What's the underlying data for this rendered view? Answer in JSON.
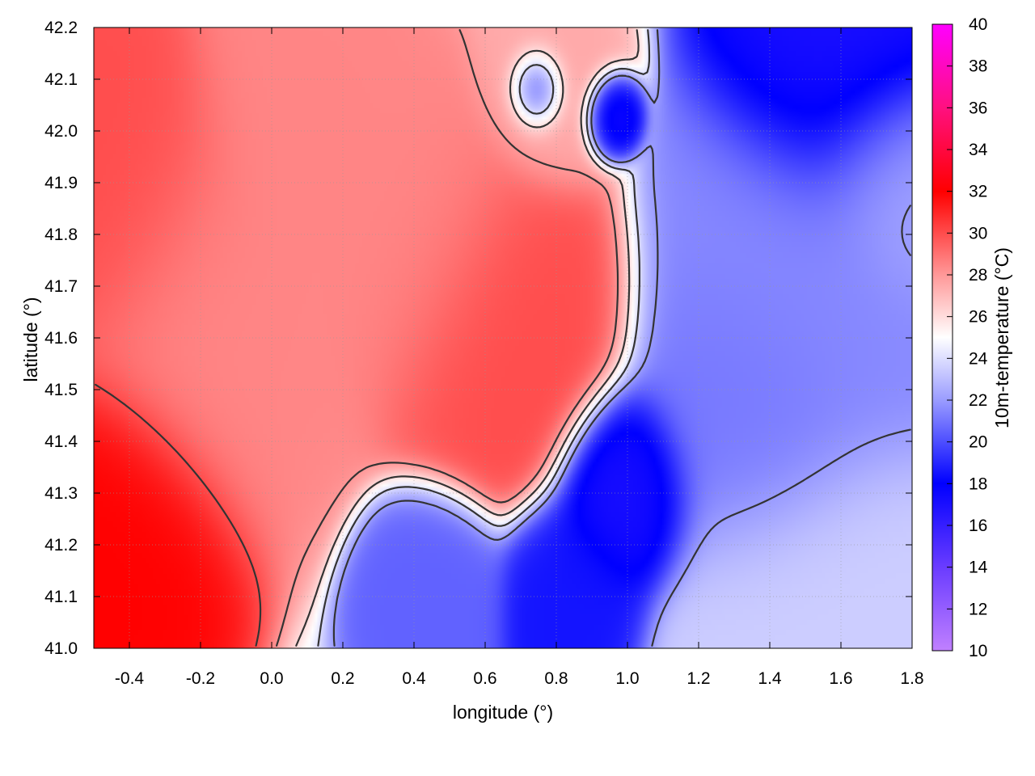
{
  "chart_data": {
    "type": "heatmap",
    "title": "",
    "xlabel": "longitude (°)",
    "ylabel": "latitude (°)",
    "colorbar_label": "10m-temperature (°C)",
    "xlim": [
      -0.5,
      1.8
    ],
    "ylim": [
      41.0,
      42.2
    ],
    "clim": [
      10,
      40
    ],
    "x_ticks": [
      "-0.4",
      "-0.2",
      "0.0",
      "0.2",
      "0.4",
      "0.6",
      "0.8",
      "1.0",
      "1.2",
      "1.4",
      "1.6",
      "1.8"
    ],
    "y_ticks": [
      "41.0",
      "41.1",
      "41.2",
      "41.3",
      "41.4",
      "41.5",
      "41.6",
      "41.7",
      "41.8",
      "41.9",
      "42.0",
      "42.1",
      "42.2"
    ],
    "colorbar_ticks": [
      "10",
      "12",
      "14",
      "16",
      "18",
      "20",
      "22",
      "24",
      "26",
      "28",
      "30",
      "32",
      "34",
      "36",
      "38",
      "40"
    ],
    "grid": true,
    "colormap": [
      {
        "t": 10,
        "color": "#c080ff"
      },
      {
        "t": 14,
        "color": "#6a3cff"
      },
      {
        "t": 18,
        "color": "#0000ff"
      },
      {
        "t": 22,
        "color": "#9a9cff"
      },
      {
        "t": 25,
        "color": "#ffffff"
      },
      {
        "t": 28,
        "color": "#ff9898"
      },
      {
        "t": 32,
        "color": "#ff0000"
      },
      {
        "t": 36,
        "color": "#ff1080"
      },
      {
        "t": 40,
        "color": "#ff00ff"
      }
    ],
    "temperature_centers": [
      {
        "lon": -0.45,
        "lat": 41.2,
        "t": 32,
        "r": 0.2
      },
      {
        "lon": -0.45,
        "lat": 41.9,
        "t": 30,
        "r": 0.22
      },
      {
        "lon": -0.15,
        "lat": 41.65,
        "t": 28.5,
        "r": 0.25
      },
      {
        "lon": 0.65,
        "lat": 41.62,
        "t": 30,
        "r": 0.2
      },
      {
        "lon": 0.4,
        "lat": 41.8,
        "t": 28.5,
        "r": 0.2
      },
      {
        "lon": 0.1,
        "lat": 42.05,
        "t": 28.5,
        "r": 0.2
      },
      {
        "lon": 0.78,
        "lat": 42.08,
        "t": 27.5,
        "r": 0.12
      },
      {
        "lon": 0.75,
        "lat": 42.08,
        "t": 17,
        "r": 0.05
      },
      {
        "lon": 0.95,
        "lat": 42.03,
        "t": 17,
        "r": 0.05
      },
      {
        "lon": 1.6,
        "lat": 42.12,
        "t": 17,
        "r": 0.2
      },
      {
        "lon": 1.5,
        "lat": 41.7,
        "t": 21.5,
        "r": 0.25
      },
      {
        "lon": 1.35,
        "lat": 41.45,
        "t": 21,
        "r": 0.2
      },
      {
        "lon": 1.0,
        "lat": 41.3,
        "t": 17,
        "r": 0.12
      },
      {
        "lon": 0.85,
        "lat": 41.1,
        "t": 18.5,
        "r": 0.12
      },
      {
        "lon": 0.45,
        "lat": 41.1,
        "t": 20.5,
        "r": 0.12
      },
      {
        "lon": 1.5,
        "lat": 41.05,
        "t": 23.5,
        "r": 0.25
      },
      {
        "lon": 1.75,
        "lat": 41.9,
        "t": 22.5,
        "r": 0.15
      }
    ]
  }
}
